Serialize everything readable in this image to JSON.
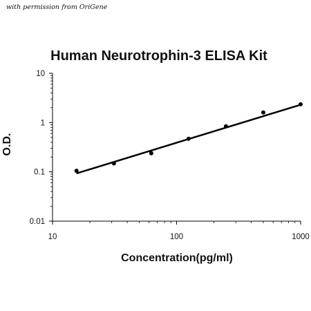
{
  "watermark": "with permission from OriGene",
  "chart_data": {
    "type": "scatter",
    "title": "Human Neurotrophin-3 ELISA Kit",
    "xlabel": "Concentration(pg/ml)",
    "ylabel": "O.D.",
    "x_scale": "log",
    "y_scale": "log",
    "xlim": [
      10,
      1000
    ],
    "ylim": [
      0.01,
      10
    ],
    "x_ticks": [
      "10",
      "100",
      "1000"
    ],
    "y_ticks": [
      "10",
      "1",
      "0.1",
      "0.01"
    ],
    "grid": false,
    "series": [
      {
        "points": [
          {
            "x": 15.6,
            "y": 0.105
          },
          {
            "x": 31.25,
            "y": 0.148
          },
          {
            "x": 62.5,
            "y": 0.238
          },
          {
            "x": 125,
            "y": 0.47
          },
          {
            "x": 250,
            "y": 0.84
          },
          {
            "x": 500,
            "y": 1.6
          },
          {
            "x": 1000,
            "y": 2.35
          }
        ]
      }
    ],
    "fit_line": [
      {
        "x": 15.6,
        "y": 0.093
      },
      {
        "x": 1000,
        "y": 2.3
      }
    ],
    "colors": {
      "points": "#000000",
      "line": "#000000",
      "axes": "#000000"
    }
  }
}
